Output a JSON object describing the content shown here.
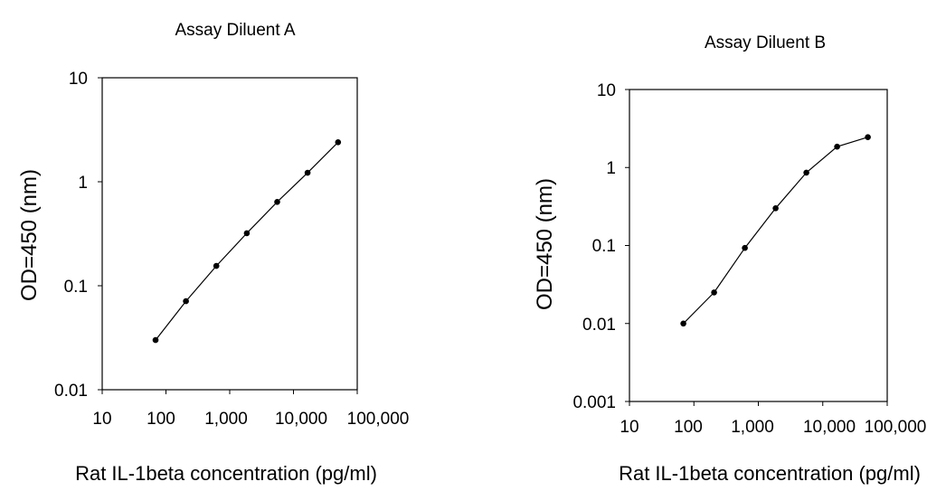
{
  "chart_data": [
    {
      "type": "line",
      "title": "Assay Diluent A",
      "xlabel": "Rat IL-1beta concentration (pg/ml)",
      "ylabel": "OD=450 (nm)",
      "xscale": "log",
      "yscale": "log",
      "xlim": [
        10,
        100000
      ],
      "ylim": [
        0.01,
        10
      ],
      "xticks": [
        "10",
        "100",
        "1,000",
        "10,000",
        "100,000"
      ],
      "yticks": [
        "0.01",
        "0.1",
        "1",
        "10"
      ],
      "grid": false,
      "marker": "circle",
      "series": [
        {
          "x": [
            68.6,
            205.8,
            617.3,
            1851.9,
            5555.6,
            16666.7,
            50000
          ],
          "y": [
            0.03,
            0.071,
            0.155,
            0.32,
            0.64,
            1.22,
            2.4
          ]
        }
      ]
    },
    {
      "type": "line",
      "title": "Assay Diluent B",
      "xlabel": "Rat IL-1beta concentration (pg/ml)",
      "ylabel": "OD=450 (nm)",
      "xscale": "log",
      "yscale": "log",
      "xlim": [
        10,
        100000
      ],
      "ylim": [
        0.001,
        10
      ],
      "xticks": [
        "10",
        "100",
        "1,000",
        "10,000",
        "100,000"
      ],
      "yticks": [
        "0.001",
        "0.01",
        "0.1",
        "1",
        "10"
      ],
      "grid": false,
      "marker": "circle",
      "series": [
        {
          "x": [
            68.6,
            205.8,
            617.3,
            1851.9,
            5555.6,
            16666.7,
            50000
          ],
          "y": [
            0.01,
            0.025,
            0.093,
            0.3,
            0.86,
            1.85,
            2.45
          ]
        }
      ]
    }
  ]
}
